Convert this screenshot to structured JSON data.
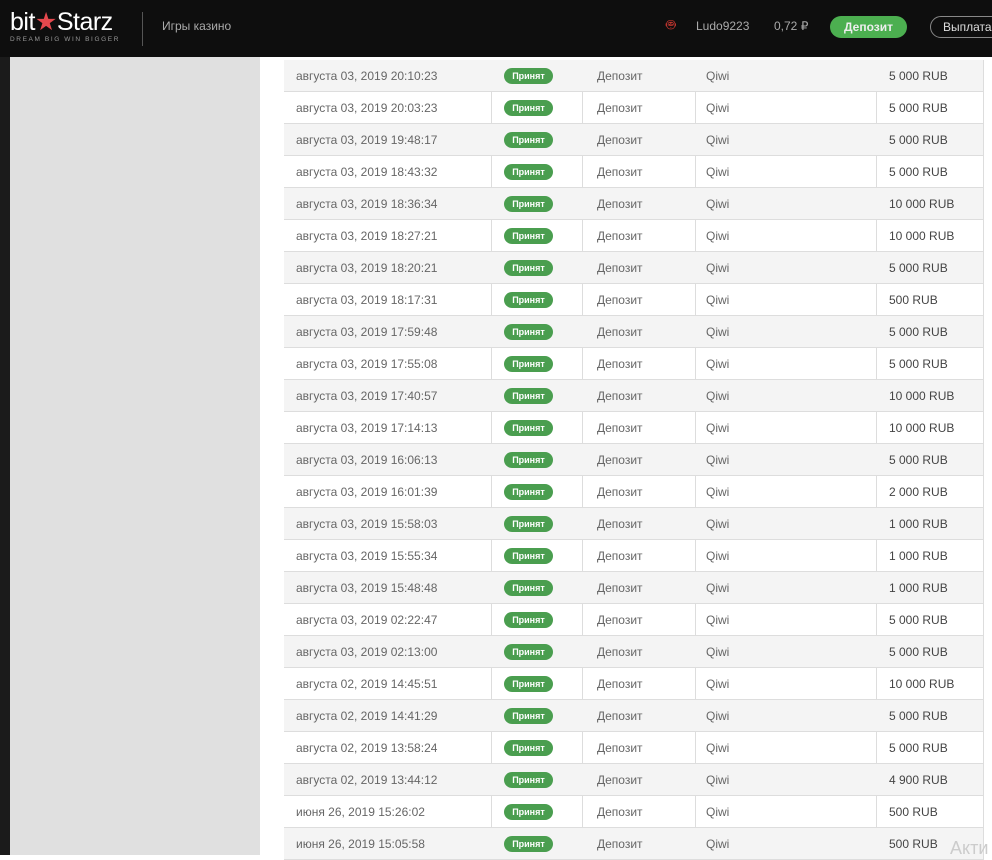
{
  "header": {
    "logo": "bitStarz",
    "logo_tagline": "DREAM BIG  WIN BIGGER",
    "nav_casino": "Игры казино",
    "username": "Ludo9223",
    "balance": "0,72 ₽",
    "deposit_button": "Депозит",
    "withdraw_button": "Выплата"
  },
  "transactions": [
    {
      "date": "августа 03, 2019 20:10:23",
      "status": "Принят",
      "type": "Депозит",
      "method": "Qiwi",
      "amount": "5 000 RUB"
    },
    {
      "date": "августа 03, 2019 20:03:23",
      "status": "Принят",
      "type": "Депозит",
      "method": "Qiwi",
      "amount": "5 000 RUB"
    },
    {
      "date": "августа 03, 2019 19:48:17",
      "status": "Принят",
      "type": "Депозит",
      "method": "Qiwi",
      "amount": "5 000 RUB"
    },
    {
      "date": "августа 03, 2019 18:43:32",
      "status": "Принят",
      "type": "Депозит",
      "method": "Qiwi",
      "amount": "5 000 RUB"
    },
    {
      "date": "августа 03, 2019 18:36:34",
      "status": "Принят",
      "type": "Депозит",
      "method": "Qiwi",
      "amount": "10 000 RUB"
    },
    {
      "date": "августа 03, 2019 18:27:21",
      "status": "Принят",
      "type": "Депозит",
      "method": "Qiwi",
      "amount": "10 000 RUB"
    },
    {
      "date": "августа 03, 2019 18:20:21",
      "status": "Принят",
      "type": "Депозит",
      "method": "Qiwi",
      "amount": "5 000 RUB"
    },
    {
      "date": "августа 03, 2019 18:17:31",
      "status": "Принят",
      "type": "Депозит",
      "method": "Qiwi",
      "amount": "500 RUB"
    },
    {
      "date": "августа 03, 2019 17:59:48",
      "status": "Принят",
      "type": "Депозит",
      "method": "Qiwi",
      "amount": "5 000 RUB"
    },
    {
      "date": "августа 03, 2019 17:55:08",
      "status": "Принят",
      "type": "Депозит",
      "method": "Qiwi",
      "amount": "5 000 RUB"
    },
    {
      "date": "августа 03, 2019 17:40:57",
      "status": "Принят",
      "type": "Депозит",
      "method": "Qiwi",
      "amount": "10 000 RUB"
    },
    {
      "date": "августа 03, 2019 17:14:13",
      "status": "Принят",
      "type": "Депозит",
      "method": "Qiwi",
      "amount": "10 000 RUB"
    },
    {
      "date": "августа 03, 2019 16:06:13",
      "status": "Принят",
      "type": "Депозит",
      "method": "Qiwi",
      "amount": "5 000 RUB"
    },
    {
      "date": "августа 03, 2019 16:01:39",
      "status": "Принят",
      "type": "Депозит",
      "method": "Qiwi",
      "amount": "2 000 RUB"
    },
    {
      "date": "августа 03, 2019 15:58:03",
      "status": "Принят",
      "type": "Депозит",
      "method": "Qiwi",
      "amount": "1 000 RUB"
    },
    {
      "date": "августа 03, 2019 15:55:34",
      "status": "Принят",
      "type": "Депозит",
      "method": "Qiwi",
      "amount": "1 000 RUB"
    },
    {
      "date": "августа 03, 2019 15:48:48",
      "status": "Принят",
      "type": "Депозит",
      "method": "Qiwi",
      "amount": "1 000 RUB"
    },
    {
      "date": "августа 03, 2019 02:22:47",
      "status": "Принят",
      "type": "Депозит",
      "method": "Qiwi",
      "amount": "5 000 RUB"
    },
    {
      "date": "августа 03, 2019 02:13:00",
      "status": "Принят",
      "type": "Депозит",
      "method": "Qiwi",
      "amount": "5 000 RUB"
    },
    {
      "date": "августа 02, 2019 14:45:51",
      "status": "Принят",
      "type": "Депозит",
      "method": "Qiwi",
      "amount": "10 000 RUB"
    },
    {
      "date": "августа 02, 2019 14:41:29",
      "status": "Принят",
      "type": "Депозит",
      "method": "Qiwi",
      "amount": "5 000 RUB"
    },
    {
      "date": "августа 02, 2019 13:58:24",
      "status": "Принят",
      "type": "Депозит",
      "method": "Qiwi",
      "amount": "5 000 RUB"
    },
    {
      "date": "августа 02, 2019 13:44:12",
      "status": "Принят",
      "type": "Депозит",
      "method": "Qiwi",
      "amount": "4 900 RUB"
    },
    {
      "date": "июня 26, 2019 15:26:02",
      "status": "Принят",
      "type": "Депозит",
      "method": "Qiwi",
      "amount": "500 RUB"
    },
    {
      "date": "июня 26, 2019 15:05:58",
      "status": "Принят",
      "type": "Депозит",
      "method": "Qiwi",
      "amount": "500 RUB"
    }
  ],
  "watermark": "Акти",
  "colors": {
    "accent": "#4caf50",
    "header": "#0e0e0e",
    "logo_star": "#e5484d"
  }
}
